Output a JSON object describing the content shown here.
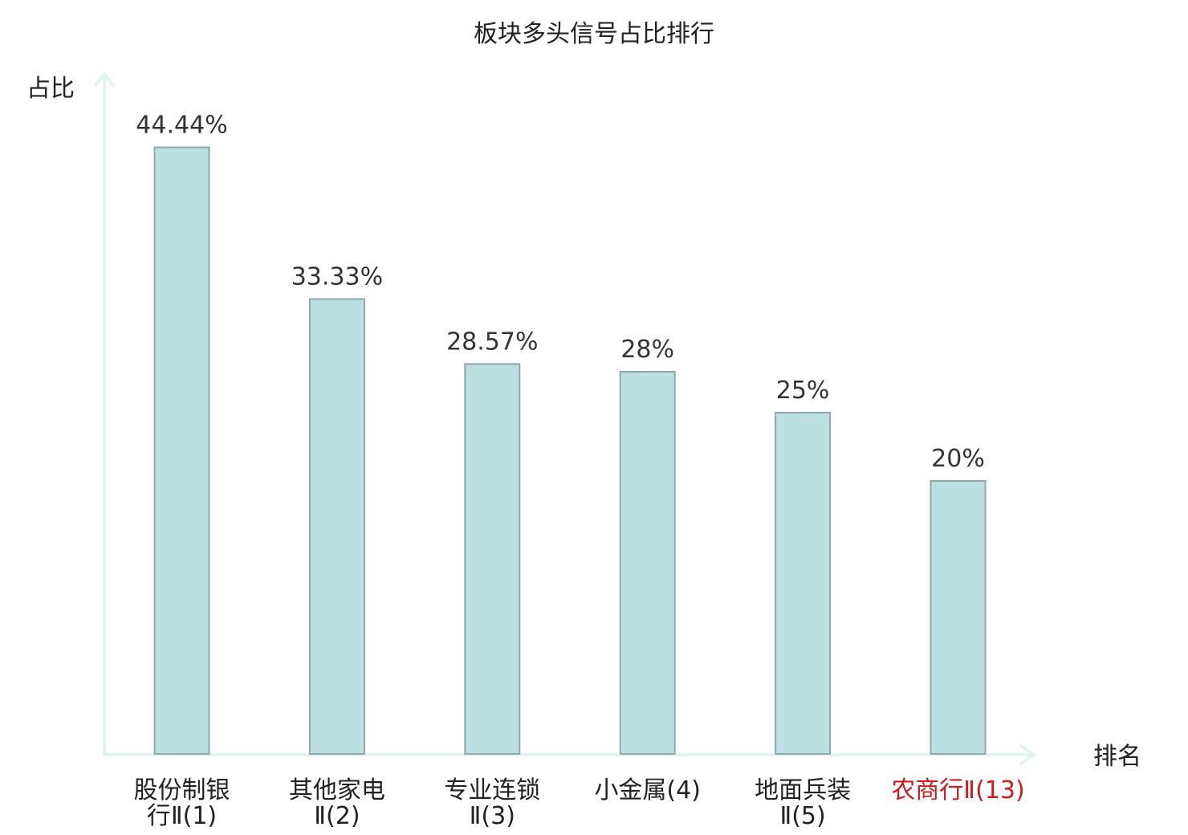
{
  "chart_data": {
    "type": "bar",
    "title": "板块多头信号占比排行",
    "xlabel": "排名",
    "ylabel": "占比",
    "categories": [
      {
        "line1": "股份制银",
        "line2": "行Ⅱ(1)",
        "highlight": false
      },
      {
        "line1": "其他家电",
        "line2": "Ⅱ(2)",
        "highlight": false
      },
      {
        "line1": "专业连锁",
        "line2": "Ⅱ(3)",
        "highlight": false
      },
      {
        "line1": "小金属(4)",
        "line2": "",
        "highlight": false
      },
      {
        "line1": "地面兵装",
        "line2": "Ⅱ(5)",
        "highlight": false
      },
      {
        "line1": "农商行Ⅱ(13)",
        "line2": "",
        "highlight": true
      }
    ],
    "values": [
      44.44,
      33.33,
      28.57,
      28,
      25,
      20
    ],
    "value_labels": [
      "44.44%",
      "33.33%",
      "28.57%",
      "28%",
      "25%",
      "20%"
    ],
    "ylim": [
      0,
      50
    ],
    "grid": false,
    "colors": {
      "bar_fill": "#bce0e2",
      "bar_stroke": "#8fa9aa",
      "axis": "#e2f3f0",
      "highlight_label": "#d0191b",
      "text": "#222222"
    }
  }
}
